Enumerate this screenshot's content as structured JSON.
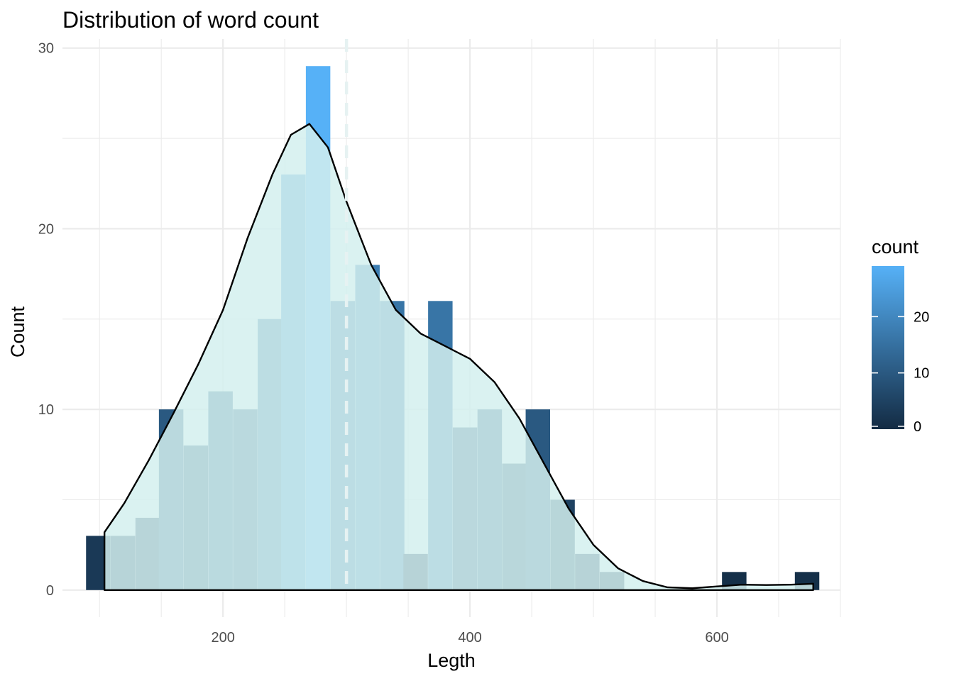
{
  "chart_data": {
    "type": "bar",
    "subtype": "histogram with density overlay",
    "title": "Distribution of word count",
    "xlabel": "Legth",
    "ylabel": "Count",
    "xlim": [
      70,
      700
    ],
    "ylim": [
      -1.5,
      30.5
    ],
    "x_ticks": [
      200,
      400,
      600
    ],
    "y_ticks": [
      0,
      10,
      20,
      30
    ],
    "bin_width": 19.8,
    "bins": [
      {
        "x": 99,
        "count": 3
      },
      {
        "x": 119,
        "count": 3
      },
      {
        "x": 139,
        "count": 4
      },
      {
        "x": 158,
        "count": 10
      },
      {
        "x": 178,
        "count": 8
      },
      {
        "x": 198,
        "count": 11
      },
      {
        "x": 218,
        "count": 10
      },
      {
        "x": 238,
        "count": 15
      },
      {
        "x": 257,
        "count": 23
      },
      {
        "x": 277,
        "count": 29
      },
      {
        "x": 297,
        "count": 16
      },
      {
        "x": 317,
        "count": 18
      },
      {
        "x": 337,
        "count": 16
      },
      {
        "x": 356,
        "count": 2
      },
      {
        "x": 376,
        "count": 16
      },
      {
        "x": 396,
        "count": 9
      },
      {
        "x": 416,
        "count": 10
      },
      {
        "x": 436,
        "count": 7
      },
      {
        "x": 455,
        "count": 10
      },
      {
        "x": 475,
        "count": 5
      },
      {
        "x": 495,
        "count": 2
      },
      {
        "x": 515,
        "count": 1
      },
      {
        "x": 614,
        "count": 1
      },
      {
        "x": 673,
        "count": 1
      }
    ],
    "density_curve": [
      [
        104,
        3.2
      ],
      [
        120,
        4.8
      ],
      [
        140,
        7.2
      ],
      [
        160,
        9.8
      ],
      [
        180,
        12.5
      ],
      [
        200,
        15.5
      ],
      [
        220,
        19.5
      ],
      [
        240,
        23.0
      ],
      [
        255,
        25.2
      ],
      [
        270,
        25.8
      ],
      [
        285,
        24.5
      ],
      [
        300,
        21.5
      ],
      [
        320,
        18.0
      ],
      [
        340,
        15.5
      ],
      [
        360,
        14.2
      ],
      [
        380,
        13.5
      ],
      [
        400,
        12.8
      ],
      [
        420,
        11.5
      ],
      [
        440,
        9.5
      ],
      [
        460,
        7.0
      ],
      [
        480,
        4.5
      ],
      [
        500,
        2.5
      ],
      [
        520,
        1.2
      ],
      [
        540,
        0.5
      ],
      [
        560,
        0.15
      ],
      [
        580,
        0.1
      ],
      [
        600,
        0.2
      ],
      [
        620,
        0.3
      ],
      [
        640,
        0.28
      ],
      [
        660,
        0.3
      ],
      [
        678,
        0.35
      ]
    ],
    "vline": {
      "x": 300,
      "style": "dashed",
      "color": "#e6f2f2"
    },
    "colors": {
      "bar_low": "#132b43",
      "bar_high": "#56b1f7",
      "density_fill": "#d3f0ef",
      "density_line": "#000000",
      "grid": "#ebebeb"
    },
    "legend": {
      "title": "count",
      "position": "right",
      "type": "colorbar",
      "min": 0,
      "max": 29,
      "ticks": [
        0,
        10,
        20
      ]
    },
    "grid": true
  }
}
